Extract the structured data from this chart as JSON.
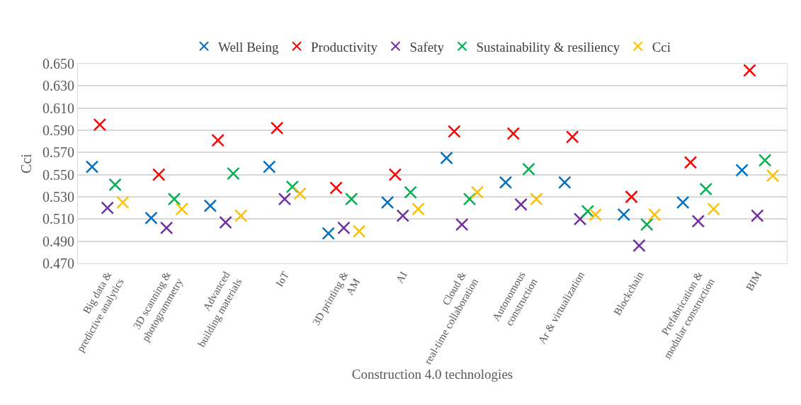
{
  "chart_data": {
    "type": "scatter",
    "xlabel": "Construction 4.0 technologies",
    "ylabel": "Cci",
    "categories": [
      "Big data &\npredictive analytics",
      "3D scanning &\nphotogrammetry",
      "Advanced\nbuilding materials",
      "IoT",
      "3D printing &\nAM",
      "AI",
      "Cloud &\nreal-time collaboration",
      "Autonomous\nconstruction",
      "Ar & virtualization",
      "Blockchain",
      "Prefabrication &\nmodular construction",
      "BIM"
    ],
    "series": [
      {
        "name": "Well Being",
        "color": "#0070c0",
        "values": [
          0.557,
          0.511,
          0.522,
          0.557,
          0.497,
          0.525,
          0.565,
          0.543,
          0.543,
          0.514,
          0.525,
          0.554
        ]
      },
      {
        "name": "Productivity",
        "color": "#ff0000",
        "values": [
          0.595,
          0.55,
          0.581,
          0.592,
          0.538,
          0.55,
          0.589,
          0.587,
          0.584,
          0.53,
          0.561,
          0.644
        ]
      },
      {
        "name": "Safety",
        "color": "#7030a0",
        "values": [
          0.52,
          0.502,
          0.507,
          0.528,
          0.502,
          0.513,
          0.505,
          0.523,
          0.51,
          0.486,
          0.508,
          0.513
        ]
      },
      {
        "name": "Sustainability & resiliency",
        "color": "#00b050",
        "values": [
          0.541,
          0.528,
          0.551,
          0.539,
          0.528,
          0.534,
          0.528,
          0.555,
          0.517,
          0.505,
          0.537,
          0.563
        ]
      },
      {
        "name": "Cci",
        "color": "#ffc000",
        "values": [
          0.525,
          0.519,
          0.513,
          0.533,
          0.499,
          0.519,
          0.534,
          0.528,
          0.514,
          0.514,
          0.519,
          0.549
        ]
      }
    ],
    "ylim": [
      0.47,
      0.65
    ],
    "yticks": [
      {
        "value": 0.47,
        "label": "0.470"
      },
      {
        "value": 0.49,
        "label": "0.490"
      },
      {
        "value": 0.51,
        "label": "0.510"
      },
      {
        "value": 0.53,
        "label": "0.530"
      },
      {
        "value": 0.55,
        "label": "0.550"
      },
      {
        "value": 0.57,
        "label": "0.570"
      },
      {
        "value": 0.59,
        "label": "0.590"
      },
      {
        "value": 0.61,
        "label": "0.610"
      },
      {
        "value": 0.63,
        "label": "0.630"
      },
      {
        "value": 0.65,
        "label": "0.650"
      }
    ],
    "grid": "y",
    "legend": "top",
    "marker": "cross"
  }
}
